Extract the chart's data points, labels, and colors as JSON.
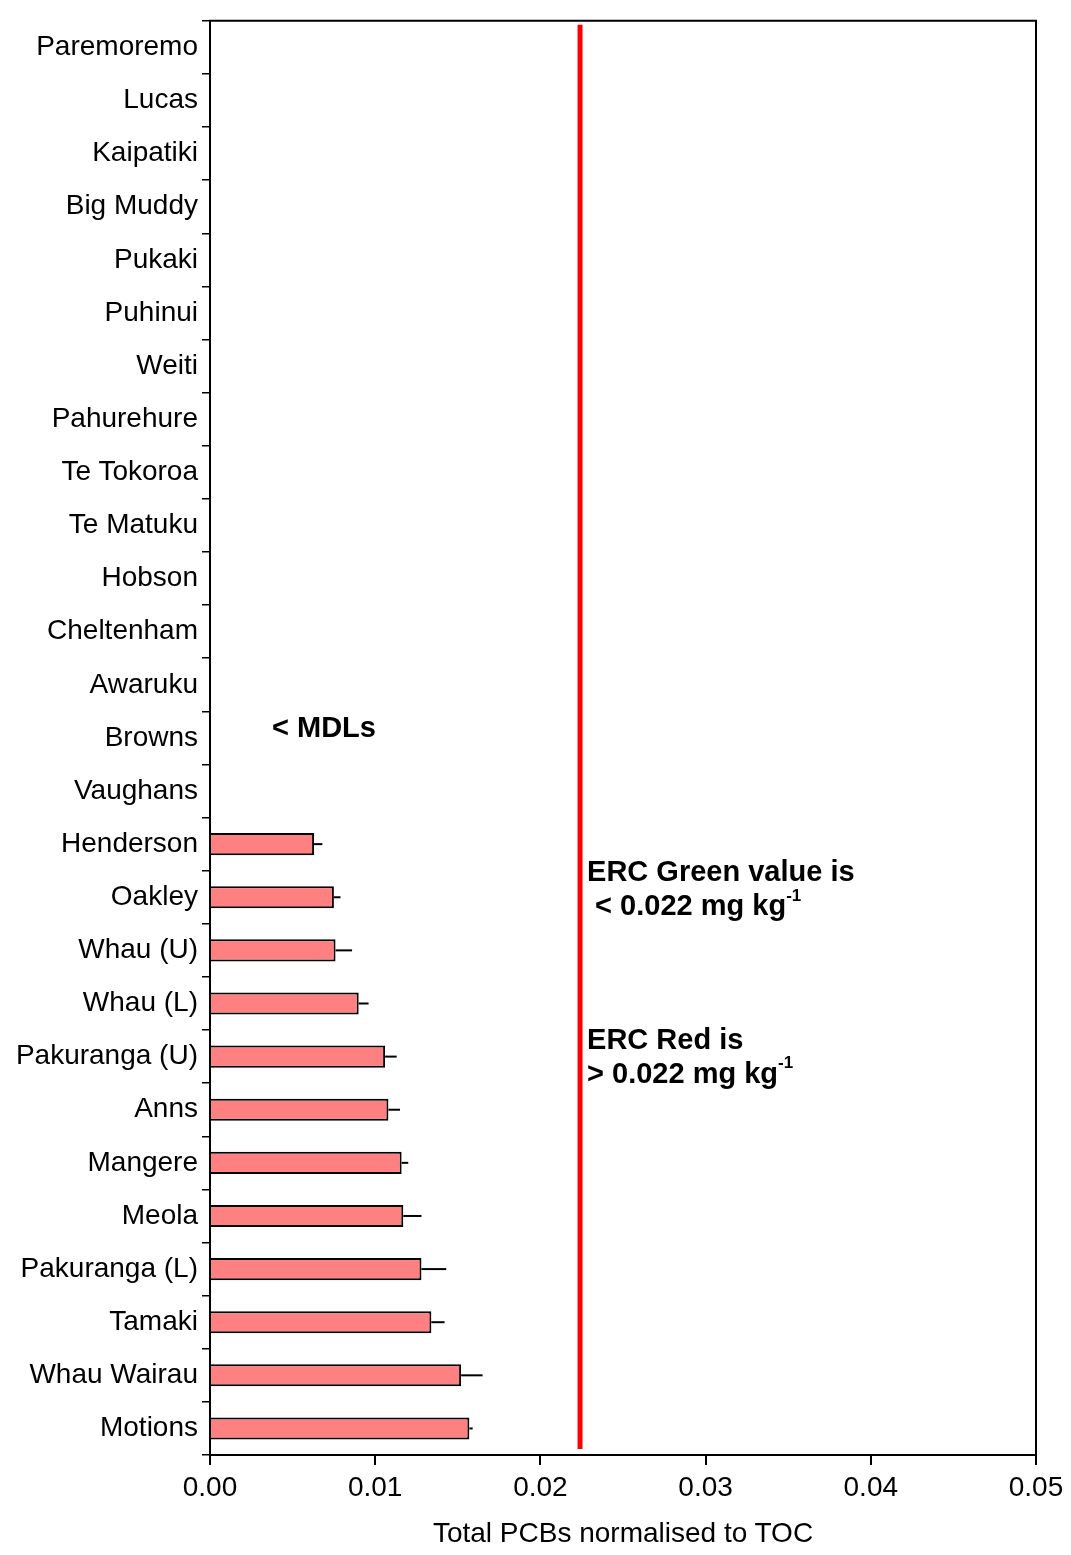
{
  "chart_data": {
    "type": "bar",
    "orientation": "horizontal",
    "categories": [
      "Paremoremo",
      "Lucas",
      "Kaipatiki",
      "Big Muddy",
      "Pukaki",
      "Puhinui",
      "Weiti",
      "Pahurehure",
      "Te Tokoroa",
      "Te Matuku",
      "Hobson",
      "Cheltenham",
      "Awaruku",
      "Browns",
      "Vaughans",
      "Henderson",
      "Oakley",
      "Whau (U)",
      "Whau (L)",
      "Pakuranga (U)",
      "Anns",
      "Mangere",
      "Meola",
      "Pakuranga (L)",
      "Tamaki",
      "Whau Wairau",
      "Motions"
    ],
    "values": [
      null,
      null,
      null,
      null,
      null,
      null,
      null,
      null,
      null,
      null,
      null,
      null,
      null,
      null,
      null,
      0.0063,
      0.0075,
      0.0076,
      0.009,
      0.0106,
      0.0108,
      0.0116,
      0.0117,
      0.0128,
      0.0134,
      0.0152,
      0.0157
    ],
    "errors": [
      null,
      null,
      null,
      null,
      null,
      null,
      null,
      null,
      null,
      null,
      null,
      null,
      null,
      null,
      null,
      [
        0.0063,
        0.0068
      ],
      [
        0.0075,
        0.0079
      ],
      [
        0.0076,
        0.0086
      ],
      [
        0.009,
        0.0096
      ],
      [
        0.0106,
        0.0113
      ],
      [
        0.0108,
        0.0115
      ],
      [
        0.0116,
        0.012
      ],
      [
        0.0117,
        0.0128
      ],
      [
        0.0128,
        0.0143
      ],
      [
        0.0134,
        0.0142
      ],
      [
        0.0152,
        0.0165
      ],
      [
        0.0157,
        0.0159
      ]
    ],
    "color": "#ff8080",
    "xlabel": "Total PCBs normalised to TOC",
    "xlim": [
      0,
      0.05
    ],
    "xticks": [
      {
        "value": 0,
        "label": "0.00"
      },
      0.01,
      0.02,
      0.03,
      0.04,
      0.05
    ],
    "ref_lines": [
      {
        "axis": "x",
        "value": 0.0224,
        "color": "#ff0000"
      }
    ],
    "annotations": [
      "< MDLs",
      "ERC Green value is\n < 0.022 mg kg$^{-1}$",
      "ERC Red is\n> 0.022 mg kg$^{-1}$"
    ]
  }
}
